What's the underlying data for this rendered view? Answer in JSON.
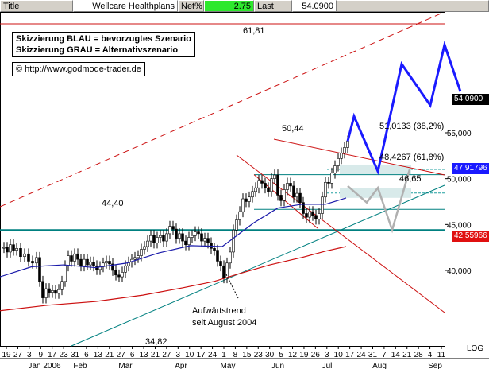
{
  "header": {
    "title_label": "Title",
    "title_value": "Wellcare Healthplans",
    "netchange_label": "Net%",
    "netchange_value": "2.75",
    "last_label": "Last",
    "last_value": "54.0900"
  },
  "notes": {
    "line1": "Skizzierung BLAU = bevorzugtes Szenario",
    "line2": "Skizzierung GRAU = Alternativszenario",
    "url": "http://www.godmode-trader.de",
    "copyright_icon": "copyright-icon"
  },
  "chart_data": {
    "type": "candlestick",
    "title": "",
    "y_ticks": [
      40,
      45,
      50,
      55
    ],
    "y_tick_labels": [
      "40,000",
      "45,000",
      "50,000",
      "55,000"
    ],
    "ylim": [
      34.2,
      64.8
    ],
    "x_tick_labels": [
      "19",
      "27",
      "3",
      "9",
      "17",
      "23",
      "31",
      "6",
      "13",
      "21",
      "27",
      "6",
      "13",
      "21",
      "27",
      "3",
      "10",
      "17",
      "24",
      "1",
      "8",
      "15",
      "23",
      "30",
      "5",
      "12",
      "19",
      "26",
      "3",
      "10",
      "17",
      "24",
      "31",
      "7",
      "14",
      "21",
      "28",
      "4",
      "11"
    ],
    "month_labels": [
      "Jan 2006",
      "Feb",
      "Mar",
      "Apr",
      "May",
      "Jun",
      "Jul",
      "Aug",
      "Sep"
    ],
    "log_label": "LOG",
    "price_boxes": [
      {
        "value": "54.0900",
        "bg": "#000000",
        "fg": "#ffffff"
      },
      {
        "value": "47.91796",
        "bg": "#1a1aff",
        "fg": "#ffffff"
      },
      {
        "value": "42.55966",
        "bg": "#e01010",
        "fg": "#ffffff"
      }
    ],
    "annotations": {
      "level_high": "61,81",
      "level_50": "50,44",
      "level_46": "46,65",
      "level_44": "44,40",
      "level_34": "34,82",
      "fib_382": "51,0133 (38,2%)",
      "fib_618": "48,4267 (61,8%)",
      "trend_note_1": "Aufwärtstrend",
      "trend_note_2": "seit August 2004"
    },
    "series": [
      {
        "name": "price",
        "color": "#000000"
      },
      {
        "name": "ma-blue",
        "color": "#1a1aaa"
      },
      {
        "name": "ma-red",
        "color": "#cc1010"
      }
    ],
    "colors": {
      "resistance": "#cc1010",
      "support": "#008080",
      "blue_scenario": "#1a1aff",
      "grey_scenario": "#b0b0b0",
      "fib": "#20a0a0"
    }
  }
}
